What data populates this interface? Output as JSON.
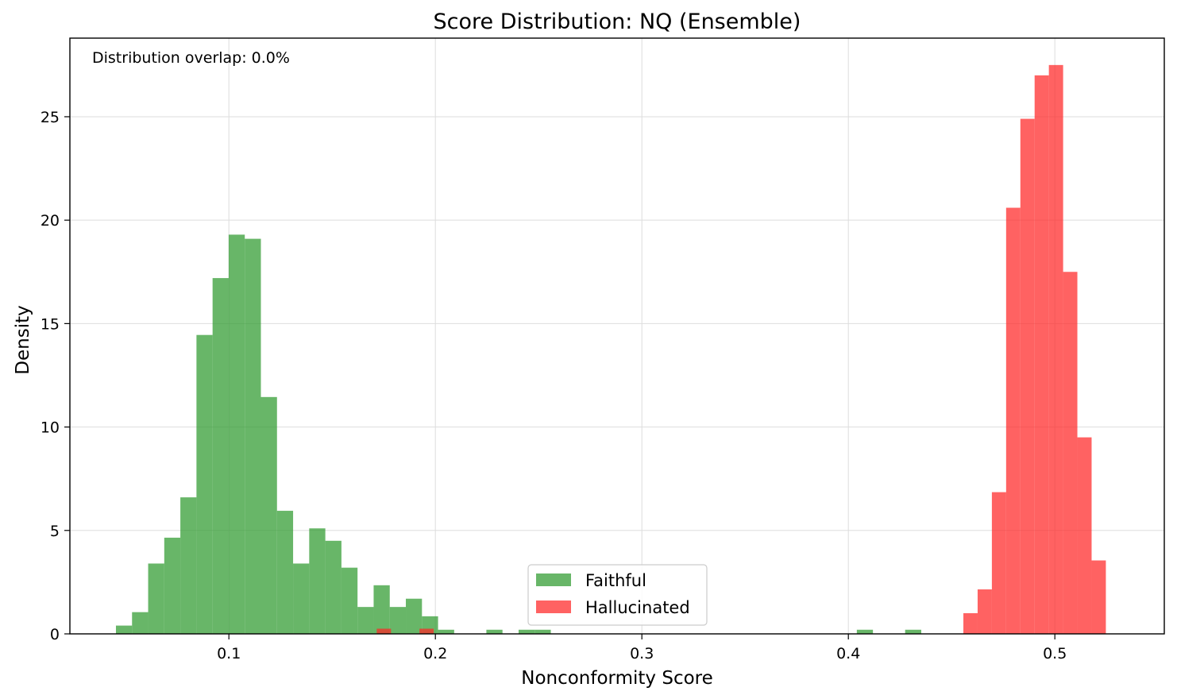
{
  "chart_data": {
    "type": "histogram",
    "title": "Score Distribution: NQ (Ensemble)",
    "xlabel": "Nonconformity Score",
    "ylabel": "Density",
    "xlim": [
      0.023,
      0.553
    ],
    "ylim": [
      0,
      28.8
    ],
    "xticks": [
      0.1,
      0.2,
      0.3,
      0.4,
      0.5
    ],
    "xtick_labels": [
      "0.1",
      "0.2",
      "0.3",
      "0.4",
      "0.5"
    ],
    "yticks": [
      0,
      5,
      10,
      15,
      20,
      25
    ],
    "ytick_labels": [
      "0",
      "5",
      "10",
      "15",
      "20",
      "25"
    ],
    "grid": true,
    "legend_position": "lower-center",
    "annotation": "Distribution overlap: 0.0%",
    "series": [
      {
        "name": "Faithful",
        "color": "#2e9a2e",
        "alpha": 0.72,
        "bins": [
          [
            0.0453,
            0.0531,
            0.4
          ],
          [
            0.0531,
            0.0609,
            1.05
          ],
          [
            0.0609,
            0.0687,
            3.4
          ],
          [
            0.0687,
            0.0765,
            4.65
          ],
          [
            0.0765,
            0.0843,
            6.6
          ],
          [
            0.0843,
            0.0921,
            14.45
          ],
          [
            0.0921,
            0.0999,
            17.2
          ],
          [
            0.0999,
            0.1077,
            19.3
          ],
          [
            0.1077,
            0.1155,
            19.1
          ],
          [
            0.1155,
            0.1233,
            11.45
          ],
          [
            0.1233,
            0.1311,
            5.95
          ],
          [
            0.1311,
            0.1389,
            3.4
          ],
          [
            0.1389,
            0.1467,
            5.1
          ],
          [
            0.1467,
            0.1545,
            4.5
          ],
          [
            0.1545,
            0.1623,
            3.2
          ],
          [
            0.1623,
            0.1701,
            1.3
          ],
          [
            0.1701,
            0.1779,
            2.35
          ],
          [
            0.1779,
            0.1857,
            1.3
          ],
          [
            0.1857,
            0.1935,
            1.7
          ],
          [
            0.1935,
            0.2013,
            0.85
          ],
          [
            0.2013,
            0.2091,
            0.2
          ],
          [
            0.2247,
            0.2325,
            0.2
          ],
          [
            0.2403,
            0.2481,
            0.2
          ],
          [
            0.2481,
            0.2559,
            0.2
          ],
          [
            0.4041,
            0.4119,
            0.2
          ],
          [
            0.4275,
            0.4353,
            0.2
          ]
        ]
      },
      {
        "name": "Hallucinated",
        "color": "#ff2626",
        "alpha": 0.72,
        "bins": [
          [
            0.1716,
            0.1785,
            0.25
          ],
          [
            0.1923,
            0.1992,
            0.25
          ],
          [
            0.4557,
            0.4626,
            1.0
          ],
          [
            0.4626,
            0.4695,
            2.15
          ],
          [
            0.4695,
            0.4764,
            6.85
          ],
          [
            0.4764,
            0.4833,
            20.6
          ],
          [
            0.4833,
            0.4902,
            24.9
          ],
          [
            0.4902,
            0.4971,
            27.0
          ],
          [
            0.4971,
            0.504,
            27.5
          ],
          [
            0.504,
            0.5109,
            17.5
          ],
          [
            0.5109,
            0.5178,
            9.5
          ],
          [
            0.5178,
            0.5247,
            3.55
          ]
        ]
      }
    ]
  }
}
